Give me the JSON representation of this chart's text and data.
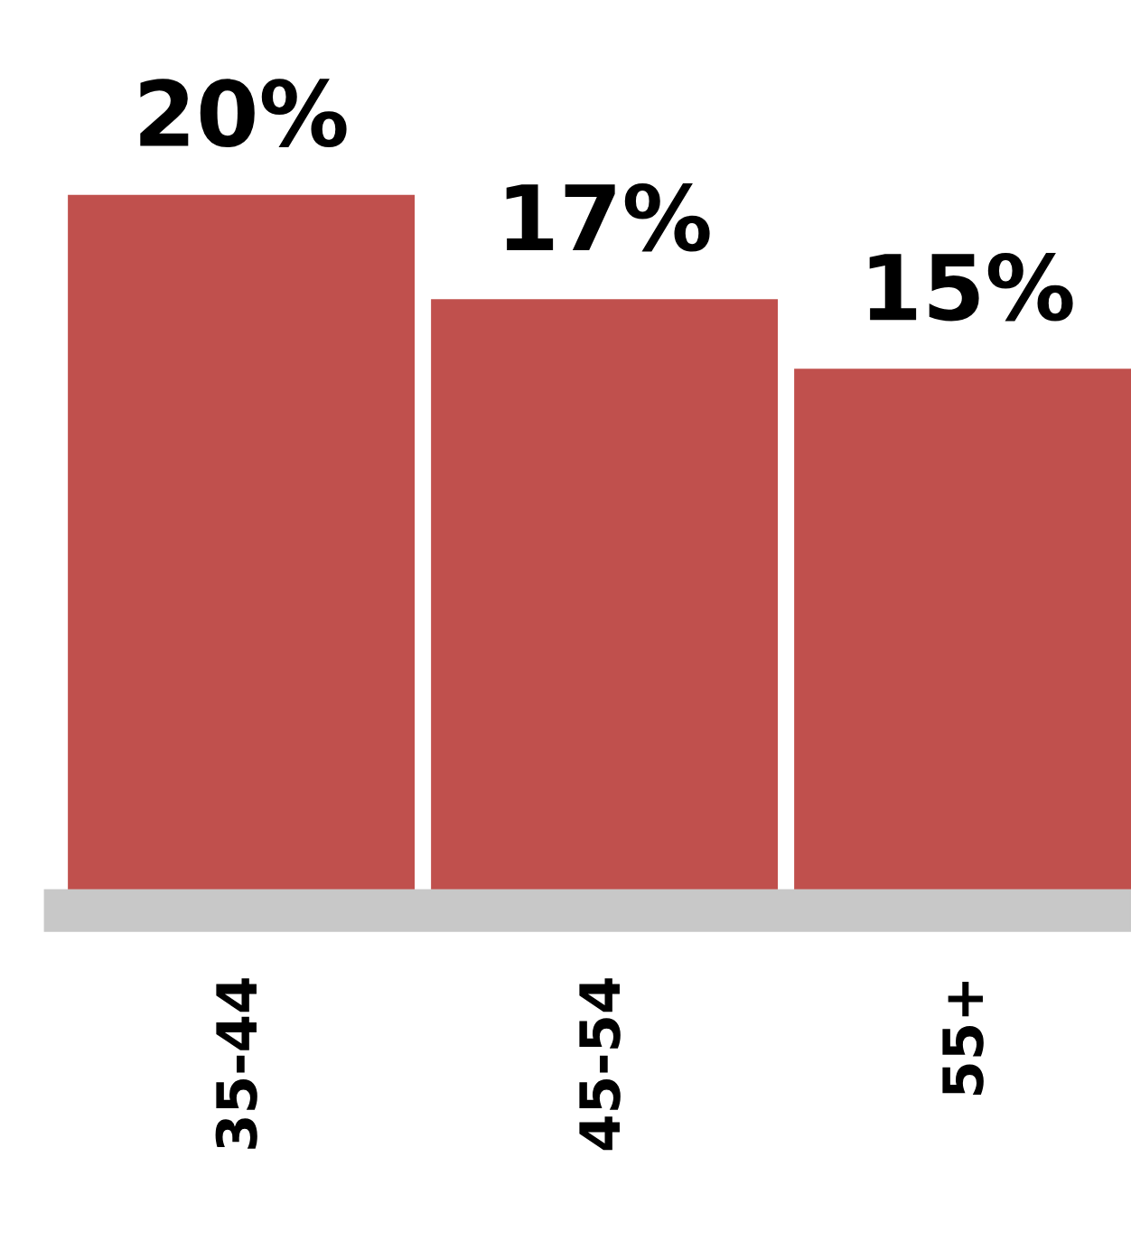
{
  "chart_data": {
    "type": "bar",
    "categories": [
      "35-44",
      "45-54",
      "55+"
    ],
    "values": [
      20,
      17,
      15
    ],
    "color": "#c0504d",
    "data_labels": true,
    "value_labels": [
      "20%",
      "17%",
      "15%"
    ],
    "grid": false,
    "legend": false
  }
}
